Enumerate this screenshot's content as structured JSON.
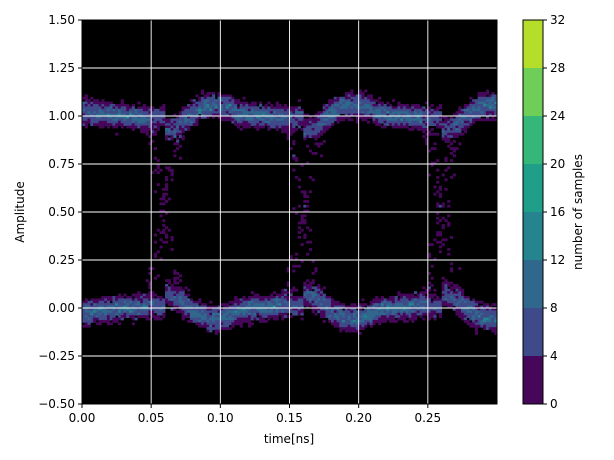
{
  "chart_data": {
    "type": "heatmap",
    "subtype": "eye-diagram 2D histogram",
    "title": "",
    "xlabel": "time[ns]",
    "ylabel": "Amplitude",
    "xlim": [
      0.0,
      0.3
    ],
    "ylim": [
      -0.5,
      1.5
    ],
    "x_ticks": [
      0.0,
      0.05,
      0.1,
      0.15,
      0.2,
      0.25
    ],
    "x_tick_labels": [
      "0.00",
      "0.05",
      "0.10",
      "0.15",
      "0.20",
      "0.25"
    ],
    "y_ticks": [
      -0.5,
      -0.25,
      0.0,
      0.25,
      0.5,
      0.75,
      1.0,
      1.25,
      1.5
    ],
    "y_tick_labels": [
      "−0.50",
      "−0.25",
      "0.00",
      "0.25",
      "0.50",
      "0.75",
      "1.00",
      "1.25",
      "1.50"
    ],
    "grid": true,
    "background": "#000000",
    "bit_period_ns": 0.1,
    "crossing_times_ns": [
      0.06,
      0.16,
      0.26
    ],
    "levels": [
      0.0,
      1.0
    ],
    "overshoot": 0.15,
    "colorbar": {
      "label": "number of samples",
      "min": 0,
      "max": 32,
      "ticks": [
        0,
        4,
        8,
        12,
        16,
        20,
        24,
        28,
        32
      ],
      "colors": [
        "#46075a",
        "#3e4a89",
        "#30688d",
        "#25848e",
        "#1f9e89",
        "#35b779",
        "#6ece58",
        "#b5de2b",
        "#dde318"
      ]
    }
  }
}
